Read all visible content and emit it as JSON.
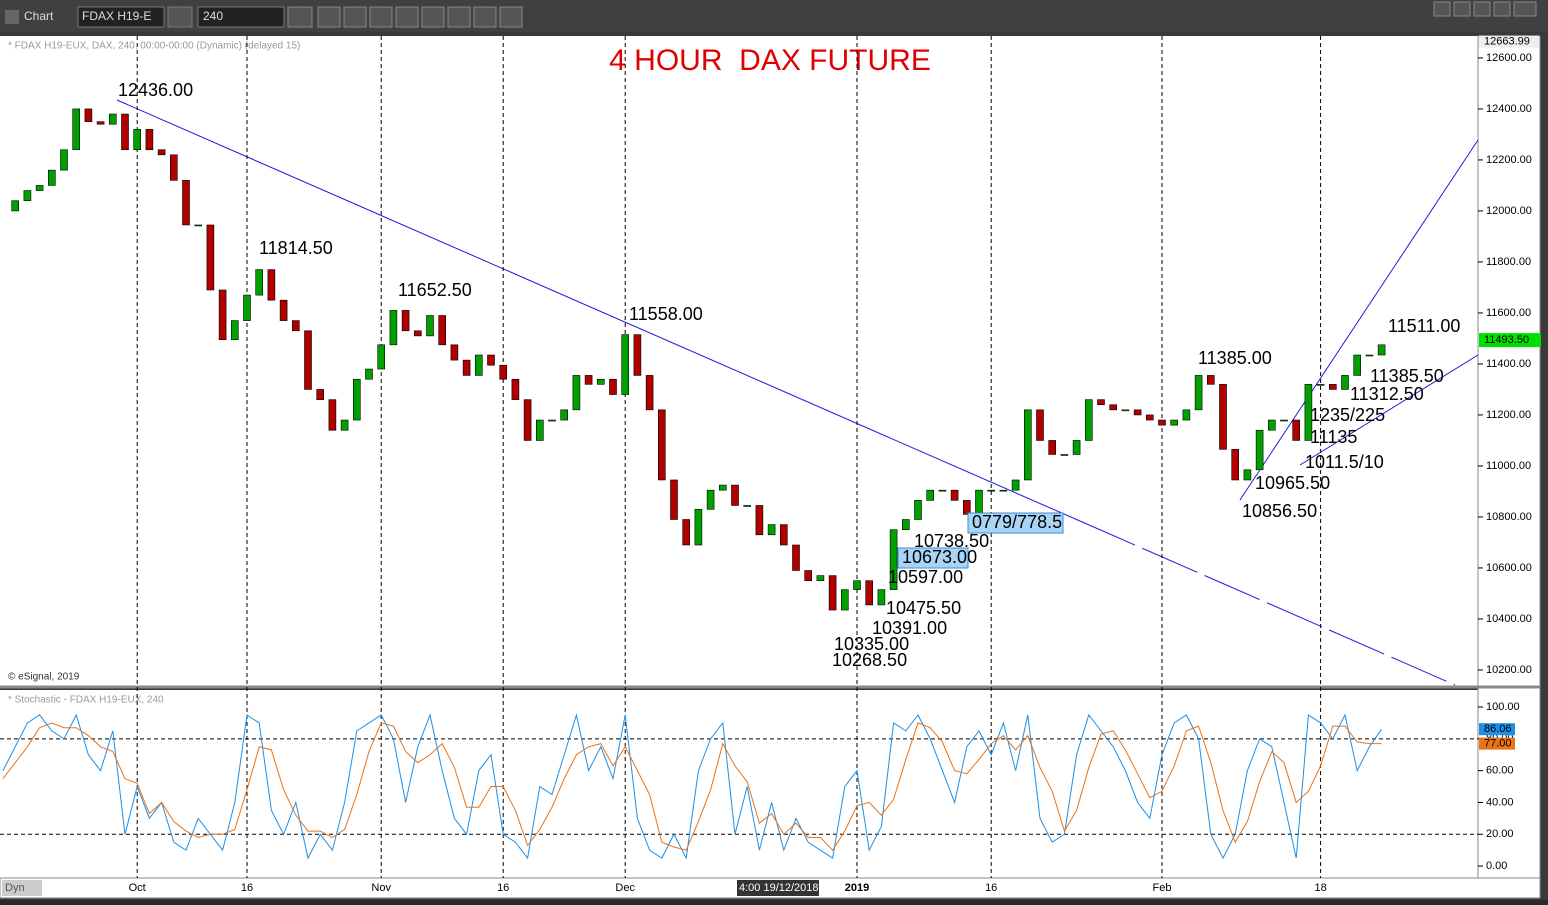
{
  "toolbar": {
    "title": "Chart",
    "symbol": "FDAX H19-E",
    "interval": "240",
    "mode": "Dyn"
  },
  "chart_data": [
    {
      "type": "candlestick",
      "title": "4 HOUR  DAX FUTURE",
      "subtitle": "* FDAX H19-EUX, DAX, 240, 00:00-00:00 (Dynamic) (delayed 15)",
      "credit": "© eSignal, 2019",
      "cursor_label": "4:00 19/12/2018",
      "up_color": "#00a000",
      "down_color": "#b00000",
      "line_color": "#1a1adf",
      "categories": [
        null,
        null,
        null,
        null,
        null,
        null,
        null,
        null,
        null,
        null,
        null,
        "Oct",
        null,
        null,
        null,
        null,
        null,
        null,
        null,
        null,
        "16",
        null,
        null,
        null,
        null,
        null,
        null,
        null,
        null,
        null,
        null,
        "Nov",
        null,
        null,
        null,
        null,
        null,
        null,
        null,
        null,
        null,
        "16",
        null,
        null,
        null,
        null,
        null,
        null,
        null,
        null,
        null,
        "Dec",
        null,
        null,
        null,
        null,
        null,
        null,
        null,
        null,
        null,
        null,
        null,
        null,
        null,
        null,
        null,
        null,
        null,
        null,
        "2019",
        null,
        null,
        null,
        null,
        null,
        null,
        null,
        null,
        null,
        null,
        "16",
        null,
        null,
        null,
        null,
        null,
        null,
        null,
        null,
        null,
        null,
        null,
        null,
        null,
        "Feb",
        null,
        null,
        null,
        null,
        null,
        null,
        null,
        null,
        null,
        null,
        null,
        null,
        "18",
        null,
        null,
        null,
        null,
        null
      ],
      "values": [
        12000,
        12040,
        12080,
        12100,
        12160,
        12240,
        12400,
        12350,
        12340,
        12380,
        12240,
        12320,
        12240,
        12220,
        12120,
        11945,
        11945,
        11690,
        11495,
        11570,
        11670,
        11770,
        11650,
        11570,
        11530,
        11300,
        11260,
        11140,
        11180,
        11340,
        11380,
        11475,
        11610,
        11530,
        11510,
        11590,
        11475,
        11415,
        11355,
        11435,
        11395,
        11340,
        11260,
        11100,
        11180,
        11180,
        11220,
        11355,
        11320,
        11340,
        11280,
        11515,
        11355,
        11220,
        10945,
        10790,
        10690,
        10830,
        10905,
        10925,
        10845,
        10845,
        10730,
        10770,
        10690,
        10590,
        10550,
        10570,
        10435,
        10515,
        10550,
        10455,
        10515,
        10750,
        10790,
        10865,
        10905,
        10905,
        10865,
        10810,
        10905,
        10905,
        10905,
        10945,
        11220,
        11100,
        11045,
        11045,
        11100,
        11260,
        11240,
        11220,
        11220,
        11200,
        11180,
        11160,
        11180,
        11220,
        11355,
        11320,
        11065,
        10945,
        10985,
        11140,
        11180,
        11180,
        11100,
        11320,
        11320,
        11300,
        11355,
        11435,
        11435,
        11475
      ],
      "ylim": [
        10141,
        12686
      ],
      "yticks": [
        {
          "value": 10200,
          "label": "10200.00"
        },
        {
          "value": 10400,
          "label": "10400.00"
        },
        {
          "value": 10600,
          "label": "10600.00"
        },
        {
          "value": 10800,
          "label": "10800.00"
        },
        {
          "value": 11000,
          "label": "11000.00"
        },
        {
          "value": 11200,
          "label": "11200.00"
        },
        {
          "value": 11400,
          "label": "11400.00"
        },
        {
          "value": 11600,
          "label": "11600.00"
        },
        {
          "value": 11800,
          "label": "11800.00"
        },
        {
          "value": 12000,
          "label": "12000.00"
        },
        {
          "value": 12200,
          "label": "12200.00"
        },
        {
          "value": 12400,
          "label": "12400.00"
        },
        {
          "value": 12600,
          "label": "12600.00"
        }
      ],
      "high": {
        "value": 12663.99,
        "label": "12663.99"
      },
      "last": {
        "value": 11493.5,
        "label": "11493.50"
      },
      "annotations": [
        "12436.00",
        "11814.50",
        "11652.50",
        "11558.00",
        "11385.00",
        "11511.00",
        "11385.50",
        "11312.50",
        "1235/225",
        "11135",
        "1011.5/10",
        "10965.50",
        "10856.50",
        "0779/778.5",
        "10738.50",
        "10673.00",
        "10597.00",
        "10475.50",
        "10391.00",
        "10335.00",
        "10268.50"
      ]
    },
    {
      "type": "line",
      "title": "* Stochastic - FDAX H19-EUX, 240",
      "ylim": [
        -7.5,
        110.7
      ],
      "yticks": [
        {
          "value": 0,
          "label": "0.00"
        },
        {
          "value": 20,
          "label": "20.00"
        },
        {
          "value": 40,
          "label": "40.00"
        },
        {
          "value": 60,
          "label": "60.00"
        },
        {
          "value": 80,
          "label": "80.00"
        },
        {
          "value": 100,
          "label": "100.00"
        }
      ],
      "levels": [
        20,
        80
      ],
      "series": [
        {
          "color": "#1e8fe6",
          "last_label": "86.06",
          "values": [
            60,
            75,
            90,
            95,
            85,
            80,
            95,
            70,
            60,
            85,
            20,
            50,
            30,
            40,
            15,
            10,
            30,
            20,
            10,
            40,
            95,
            90,
            35,
            20,
            40,
            5,
            20,
            10,
            40,
            85,
            90,
            95,
            80,
            40,
            75,
            95,
            60,
            30,
            20,
            60,
            70,
            20,
            15,
            5,
            50,
            45,
            70,
            95,
            60,
            75,
            55,
            95,
            30,
            10,
            5,
            20,
            5,
            60,
            80,
            90,
            20,
            50,
            10,
            40,
            10,
            30,
            15,
            10,
            5,
            50,
            60,
            10,
            25,
            90,
            85,
            95,
            80,
            60,
            40,
            75,
            85,
            70,
            90,
            60,
            95,
            30,
            15,
            20,
            70,
            95,
            85,
            75,
            60,
            40,
            30,
            70,
            90,
            95,
            80,
            20,
            5,
            20,
            60,
            80,
            75,
            40,
            5,
            95,
            90,
            80,
            95,
            60,
            75,
            86.06
          ]
        },
        {
          "color": "#e8731a",
          "last_label": "77.00",
          "values": [
            55,
            65,
            75,
            87,
            90,
            87,
            87,
            82,
            75,
            72,
            55,
            52,
            33,
            40,
            28,
            22,
            18,
            20,
            20,
            23,
            48,
            75,
            73,
            48,
            32,
            22,
            22,
            18,
            23,
            45,
            72,
            90,
            88,
            72,
            65,
            70,
            77,
            62,
            37,
            37,
            50,
            50,
            35,
            13,
            23,
            37,
            55,
            70,
            75,
            77,
            63,
            75,
            60,
            45,
            15,
            12,
            10,
            28,
            48,
            77,
            63,
            53,
            27,
            33,
            20,
            27,
            18,
            18,
            10,
            22,
            38,
            40,
            32,
            42,
            67,
            90,
            87,
            78,
            60,
            58,
            67,
            77,
            82,
            73,
            82,
            62,
            47,
            22,
            35,
            62,
            83,
            85,
            73,
            58,
            43,
            47,
            63,
            85,
            88,
            65,
            35,
            15,
            28,
            53,
            72,
            65,
            40,
            47,
            63,
            88,
            88,
            78,
            77,
            77
          ]
        }
      ]
    }
  ]
}
